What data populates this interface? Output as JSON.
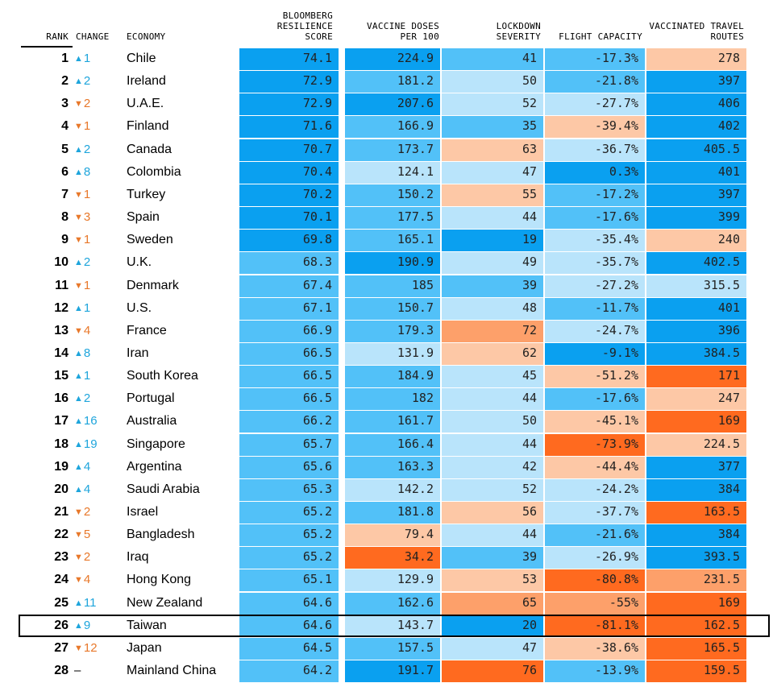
{
  "colors": {
    "dark_blue": "#0aa0f0",
    "mid_blue": "#52c1f8",
    "light_blue": "#b9e4fb",
    "light_orange": "#fdc8a6",
    "mid_orange": "#fda06a",
    "dark_orange": "#ff6a1f",
    "up_arrow": "#1ea5dc",
    "down_arrow": "#e8782a"
  },
  "chart_data": {
    "type": "table",
    "title": "",
    "columns": [
      {
        "key": "rank",
        "label": "RANK"
      },
      {
        "key": "change",
        "label": "CHANGE"
      },
      {
        "key": "economy",
        "label": "ECONOMY"
      },
      {
        "key": "score",
        "label": "BLOOMBERG RESILIENCE SCORE"
      },
      {
        "key": "vaccine",
        "label": "VACCINE DOSES PER 100"
      },
      {
        "key": "lockdown",
        "label": "LOCKDOWN SEVERITY"
      },
      {
        "key": "flight",
        "label": "FLIGHT CAPACITY"
      },
      {
        "key": "routes",
        "label": "VACCINATED TRAVEL ROUTES"
      }
    ],
    "highlighted_row": 25,
    "rows": [
      {
        "rank": "1",
        "dir": "up",
        "change": "1",
        "economy": "Chile",
        "score": "74.1",
        "vaccine": "224.9",
        "lockdown": "41",
        "flight": "-17.3%",
        "routes": "278",
        "shades": {
          "score": "dark_blue",
          "vaccine": "dark_blue",
          "lockdown": "mid_blue",
          "flight": "mid_blue",
          "routes": "light_orange"
        }
      },
      {
        "rank": "2",
        "dir": "up",
        "change": "2",
        "economy": "Ireland",
        "score": "72.9",
        "vaccine": "181.2",
        "lockdown": "50",
        "flight": "-21.8%",
        "routes": "397",
        "shades": {
          "score": "dark_blue",
          "vaccine": "mid_blue",
          "lockdown": "light_blue",
          "flight": "mid_blue",
          "routes": "dark_blue"
        }
      },
      {
        "rank": "3",
        "dir": "down",
        "change": "2",
        "economy": "U.A.E.",
        "score": "72.9",
        "vaccine": "207.6",
        "lockdown": "52",
        "flight": "-27.7%",
        "routes": "406",
        "shades": {
          "score": "dark_blue",
          "vaccine": "dark_blue",
          "lockdown": "light_blue",
          "flight": "light_blue",
          "routes": "dark_blue"
        }
      },
      {
        "rank": "4",
        "dir": "down",
        "change": "1",
        "economy": "Finland",
        "score": "71.6",
        "vaccine": "166.9",
        "lockdown": "35",
        "flight": "-39.4%",
        "routes": "402",
        "shades": {
          "score": "dark_blue",
          "vaccine": "mid_blue",
          "lockdown": "mid_blue",
          "flight": "light_orange",
          "routes": "dark_blue"
        }
      },
      {
        "rank": "5",
        "dir": "up",
        "change": "2",
        "economy": "Canada",
        "score": "70.7",
        "vaccine": "173.7",
        "lockdown": "63",
        "flight": "-36.7%",
        "routes": "405.5",
        "shades": {
          "score": "dark_blue",
          "vaccine": "mid_blue",
          "lockdown": "light_orange",
          "flight": "light_blue",
          "routes": "dark_blue"
        }
      },
      {
        "rank": "6",
        "dir": "up",
        "change": "8",
        "economy": "Colombia",
        "score": "70.4",
        "vaccine": "124.1",
        "lockdown": "47",
        "flight": "0.3%",
        "routes": "401",
        "shades": {
          "score": "dark_blue",
          "vaccine": "light_blue",
          "lockdown": "light_blue",
          "flight": "dark_blue",
          "routes": "dark_blue"
        }
      },
      {
        "rank": "7",
        "dir": "down",
        "change": "1",
        "economy": "Turkey",
        "score": "70.2",
        "vaccine": "150.2",
        "lockdown": "55",
        "flight": "-17.2%",
        "routes": "397",
        "shades": {
          "score": "dark_blue",
          "vaccine": "mid_blue",
          "lockdown": "light_orange",
          "flight": "mid_blue",
          "routes": "dark_blue"
        }
      },
      {
        "rank": "8",
        "dir": "down",
        "change": "3",
        "economy": "Spain",
        "score": "70.1",
        "vaccine": "177.5",
        "lockdown": "44",
        "flight": "-17.6%",
        "routes": "399",
        "shades": {
          "score": "dark_blue",
          "vaccine": "mid_blue",
          "lockdown": "light_blue",
          "flight": "mid_blue",
          "routes": "dark_blue"
        }
      },
      {
        "rank": "9",
        "dir": "down",
        "change": "1",
        "economy": "Sweden",
        "score": "69.8",
        "vaccine": "165.1",
        "lockdown": "19",
        "flight": "-35.4%",
        "routes": "240",
        "shades": {
          "score": "dark_blue",
          "vaccine": "mid_blue",
          "lockdown": "dark_blue",
          "flight": "light_blue",
          "routes": "light_orange"
        }
      },
      {
        "rank": "10",
        "dir": "up",
        "change": "2",
        "economy": "U.K.",
        "score": "68.3",
        "vaccine": "190.9",
        "lockdown": "49",
        "flight": "-35.7%",
        "routes": "402.5",
        "shades": {
          "score": "mid_blue",
          "vaccine": "dark_blue",
          "lockdown": "light_blue",
          "flight": "light_blue",
          "routes": "dark_blue"
        }
      },
      {
        "rank": "11",
        "dir": "down",
        "change": "1",
        "economy": "Denmark",
        "score": "67.4",
        "vaccine": "185",
        "lockdown": "39",
        "flight": "-27.2%",
        "routes": "315.5",
        "shades": {
          "score": "mid_blue",
          "vaccine": "mid_blue",
          "lockdown": "mid_blue",
          "flight": "light_blue",
          "routes": "light_blue"
        }
      },
      {
        "rank": "12",
        "dir": "up",
        "change": "1",
        "economy": "U.S.",
        "score": "67.1",
        "vaccine": "150.7",
        "lockdown": "48",
        "flight": "-11.7%",
        "routes": "401",
        "shades": {
          "score": "mid_blue",
          "vaccine": "mid_blue",
          "lockdown": "light_blue",
          "flight": "mid_blue",
          "routes": "dark_blue"
        }
      },
      {
        "rank": "13",
        "dir": "down",
        "change": "4",
        "economy": "France",
        "score": "66.9",
        "vaccine": "179.3",
        "lockdown": "72",
        "flight": "-24.7%",
        "routes": "396",
        "shades": {
          "score": "mid_blue",
          "vaccine": "mid_blue",
          "lockdown": "mid_orange",
          "flight": "light_blue",
          "routes": "dark_blue"
        }
      },
      {
        "rank": "14",
        "dir": "up",
        "change": "8",
        "economy": "Iran",
        "score": "66.5",
        "vaccine": "131.9",
        "lockdown": "62",
        "flight": "-9.1%",
        "routes": "384.5",
        "shades": {
          "score": "mid_blue",
          "vaccine": "light_blue",
          "lockdown": "light_orange",
          "flight": "dark_blue",
          "routes": "dark_blue"
        }
      },
      {
        "rank": "15",
        "dir": "up",
        "change": "1",
        "economy": "South Korea",
        "score": "66.5",
        "vaccine": "184.9",
        "lockdown": "45",
        "flight": "-51.2%",
        "routes": "171",
        "shades": {
          "score": "mid_blue",
          "vaccine": "mid_blue",
          "lockdown": "light_blue",
          "flight": "light_orange",
          "routes": "dark_orange"
        }
      },
      {
        "rank": "16",
        "dir": "up",
        "change": "2",
        "economy": "Portugal",
        "score": "66.5",
        "vaccine": "182",
        "lockdown": "44",
        "flight": "-17.6%",
        "routes": "247",
        "shades": {
          "score": "mid_blue",
          "vaccine": "mid_blue",
          "lockdown": "light_blue",
          "flight": "mid_blue",
          "routes": "light_orange"
        }
      },
      {
        "rank": "17",
        "dir": "up",
        "change": "16",
        "economy": "Australia",
        "score": "66.2",
        "vaccine": "161.7",
        "lockdown": "50",
        "flight": "-45.1%",
        "routes": "169",
        "shades": {
          "score": "mid_blue",
          "vaccine": "mid_blue",
          "lockdown": "light_blue",
          "flight": "light_orange",
          "routes": "dark_orange"
        }
      },
      {
        "rank": "18",
        "dir": "up",
        "change": "19",
        "economy": "Singapore",
        "score": "65.7",
        "vaccine": "166.4",
        "lockdown": "44",
        "flight": "-73.9%",
        "routes": "224.5",
        "shades": {
          "score": "mid_blue",
          "vaccine": "mid_blue",
          "lockdown": "light_blue",
          "flight": "dark_orange",
          "routes": "light_orange"
        }
      },
      {
        "rank": "19",
        "dir": "up",
        "change": "4",
        "economy": "Argentina",
        "score": "65.6",
        "vaccine": "163.3",
        "lockdown": "42",
        "flight": "-44.4%",
        "routes": "377",
        "shades": {
          "score": "mid_blue",
          "vaccine": "mid_blue",
          "lockdown": "light_blue",
          "flight": "light_orange",
          "routes": "dark_blue"
        }
      },
      {
        "rank": "20",
        "dir": "up",
        "change": "4",
        "economy": "Saudi Arabia",
        "score": "65.3",
        "vaccine": "142.2",
        "lockdown": "52",
        "flight": "-24.2%",
        "routes": "384",
        "shades": {
          "score": "mid_blue",
          "vaccine": "light_blue",
          "lockdown": "light_blue",
          "flight": "light_blue",
          "routes": "dark_blue"
        }
      },
      {
        "rank": "21",
        "dir": "down",
        "change": "2",
        "economy": "Israel",
        "score": "65.2",
        "vaccine": "181.8",
        "lockdown": "56",
        "flight": "-37.7%",
        "routes": "163.5",
        "shades": {
          "score": "mid_blue",
          "vaccine": "mid_blue",
          "lockdown": "light_orange",
          "flight": "light_blue",
          "routes": "dark_orange"
        }
      },
      {
        "rank": "22",
        "dir": "down",
        "change": "5",
        "economy": "Bangladesh",
        "score": "65.2",
        "vaccine": "79.4",
        "lockdown": "44",
        "flight": "-21.6%",
        "routes": "384",
        "shades": {
          "score": "mid_blue",
          "vaccine": "light_orange",
          "lockdown": "light_blue",
          "flight": "mid_blue",
          "routes": "dark_blue"
        }
      },
      {
        "rank": "23",
        "dir": "down",
        "change": "2",
        "economy": "Iraq",
        "score": "65.2",
        "vaccine": "34.2",
        "lockdown": "39",
        "flight": "-26.9%",
        "routes": "393.5",
        "shades": {
          "score": "mid_blue",
          "vaccine": "dark_orange",
          "lockdown": "mid_blue",
          "flight": "light_blue",
          "routes": "dark_blue"
        }
      },
      {
        "rank": "24",
        "dir": "down",
        "change": "4",
        "economy": "Hong Kong",
        "score": "65.1",
        "vaccine": "129.9",
        "lockdown": "53",
        "flight": "-80.8%",
        "routes": "231.5",
        "shades": {
          "score": "mid_blue",
          "vaccine": "light_blue",
          "lockdown": "light_orange",
          "flight": "dark_orange",
          "routes": "mid_orange"
        }
      },
      {
        "rank": "25",
        "dir": "up",
        "change": "11",
        "economy": "New Zealand",
        "score": "64.6",
        "vaccine": "162.6",
        "lockdown": "65",
        "flight": "-55%",
        "routes": "169",
        "shades": {
          "score": "mid_blue",
          "vaccine": "mid_blue",
          "lockdown": "mid_orange",
          "flight": "mid_orange",
          "routes": "dark_orange"
        }
      },
      {
        "rank": "26",
        "dir": "up",
        "change": "9",
        "economy": "Taiwan",
        "score": "64.6",
        "vaccine": "143.7",
        "lockdown": "20",
        "flight": "-81.1%",
        "routes": "162.5",
        "shades": {
          "score": "mid_blue",
          "vaccine": "light_blue",
          "lockdown": "dark_blue",
          "flight": "dark_orange",
          "routes": "dark_orange"
        }
      },
      {
        "rank": "27",
        "dir": "down",
        "change": "12",
        "economy": "Japan",
        "score": "64.5",
        "vaccine": "157.5",
        "lockdown": "47",
        "flight": "-38.6%",
        "routes": "165.5",
        "shades": {
          "score": "mid_blue",
          "vaccine": "mid_blue",
          "lockdown": "light_blue",
          "flight": "light_orange",
          "routes": "dark_orange"
        }
      },
      {
        "rank": "28",
        "dir": "none",
        "change": "–",
        "economy": "Mainland China",
        "score": "64.2",
        "vaccine": "191.7",
        "lockdown": "76",
        "flight": "-13.9%",
        "routes": "159.5",
        "shades": {
          "score": "mid_blue",
          "vaccine": "dark_blue",
          "lockdown": "dark_orange",
          "flight": "mid_blue",
          "routes": "dark_orange"
        }
      }
    ]
  }
}
